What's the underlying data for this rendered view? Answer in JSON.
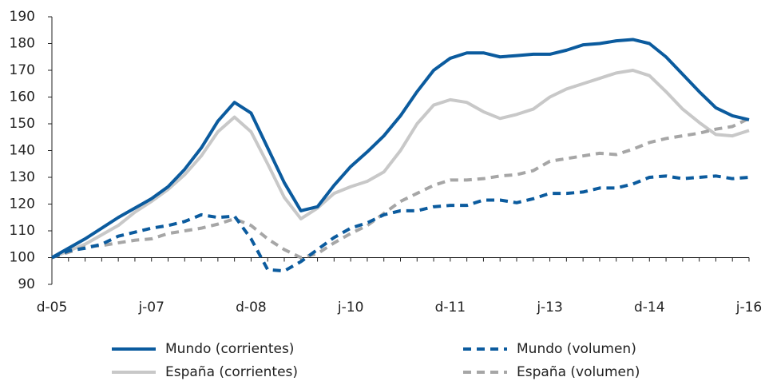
{
  "chart_data": {
    "type": "line",
    "categories": [
      "d-05",
      null,
      null,
      null,
      null,
      null,
      "j-07",
      null,
      null,
      null,
      null,
      null,
      "d-08",
      null,
      null,
      null,
      null,
      null,
      "j-10",
      null,
      null,
      null,
      null,
      null,
      "d-11",
      null,
      null,
      null,
      null,
      null,
      "j-13",
      null,
      null,
      null,
      null,
      null,
      "d-14",
      null,
      null,
      null,
      null,
      null,
      "j-16"
    ],
    "series": [
      {
        "name": "Mundo (corrientes)",
        "color": "#0b5b9e",
        "dashed": false,
        "values": [
          100,
          103.5,
          107,
          111,
          115,
          118.5,
          122,
          126.5,
          133,
          141,
          151,
          158,
          154,
          141,
          128,
          117.5,
          119,
          127,
          134,
          139.5,
          145.5,
          153,
          162,
          170,
          174.5,
          176.5,
          176.5,
          175,
          175.5,
          176,
          176,
          177.5,
          179.5,
          180,
          181,
          181.5,
          180,
          175,
          168.5,
          162,
          156,
          153,
          151.5
        ]
      },
      {
        "name": "Mundo (volumen)",
        "color": "#0b5b9e",
        "dashed": true,
        "values": [
          100,
          102.5,
          103.5,
          105,
          108,
          109.5,
          111,
          112,
          113.5,
          116,
          115,
          115.5,
          107,
          95.5,
          95,
          98.5,
          103,
          107.5,
          111,
          113,
          116,
          117.5,
          117.5,
          119,
          119.5,
          119.5,
          121.5,
          121.5,
          120.5,
          122,
          124,
          124,
          124.5,
          126,
          126,
          127.5,
          130,
          130.5,
          129.5,
          130,
          130.5,
          129.5,
          130
        ]
      },
      {
        "name": "España (corrientes)",
        "color": "#c8c8c8",
        "dashed": false,
        "values": [
          100,
          102.5,
          105,
          108.5,
          112,
          117,
          121,
          125.5,
          131,
          138,
          147,
          152.5,
          147,
          135,
          122.5,
          114.5,
          118.5,
          124,
          126.5,
          128.5,
          132,
          140,
          150,
          157,
          159,
          158,
          154.5,
          152,
          153.5,
          155.5,
          160,
          163,
          165,
          167,
          169,
          170,
          168,
          162,
          155.5,
          150.5,
          146,
          145.5,
          147.5
        ]
      },
      {
        "name": "España (volumen)",
        "color": "#a6a6a6",
        "dashed": true,
        "values": [
          100,
          102,
          104,
          104.5,
          105.5,
          106.5,
          107,
          109,
          110,
          111,
          112.5,
          114.5,
          112,
          107,
          103,
          100,
          101.5,
          105.5,
          109,
          112,
          116.5,
          121,
          124,
          127,
          129,
          129,
          129.5,
          130.5,
          131,
          132.5,
          136,
          137,
          138,
          139,
          138.5,
          140.5,
          143,
          144.5,
          145.5,
          146.5,
          148,
          149,
          152
        ]
      }
    ],
    "ylim": [
      90,
      190
    ],
    "yticks": [
      90,
      100,
      110,
      120,
      130,
      140,
      150,
      160,
      170,
      180,
      190
    ],
    "xaxis_crosses": 100,
    "grid": false
  }
}
